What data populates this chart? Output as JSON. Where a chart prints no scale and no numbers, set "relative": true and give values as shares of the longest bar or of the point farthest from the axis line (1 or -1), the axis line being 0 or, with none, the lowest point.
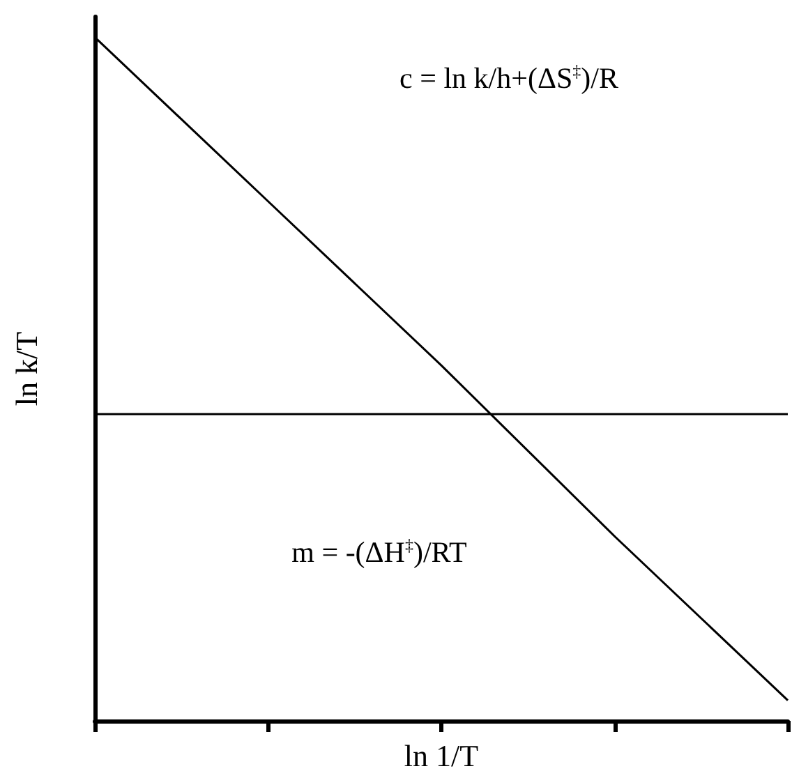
{
  "chart_data": {
    "type": "line",
    "relative": true,
    "xlabel": "ln 1/T",
    "ylabel": "ln k/T",
    "categories": [
      null,
      null,
      null,
      null,
      null
    ],
    "series": [
      {
        "color": "#000000",
        "values": [
          1,
          0.76,
          0.52,
          0.27,
          0.03
        ]
      }
    ],
    "ref_lines": [
      {
        "axis": "y",
        "value": 0.45,
        "color": "#000000"
      }
    ],
    "annotations": [
      "c = ln k/h+(ΔS$^{‡}$)/R",
      "m = -(ΔH$^{‡}$)/RT"
    ],
    "marker": "none",
    "line_style": "solid",
    "grid": false
  }
}
